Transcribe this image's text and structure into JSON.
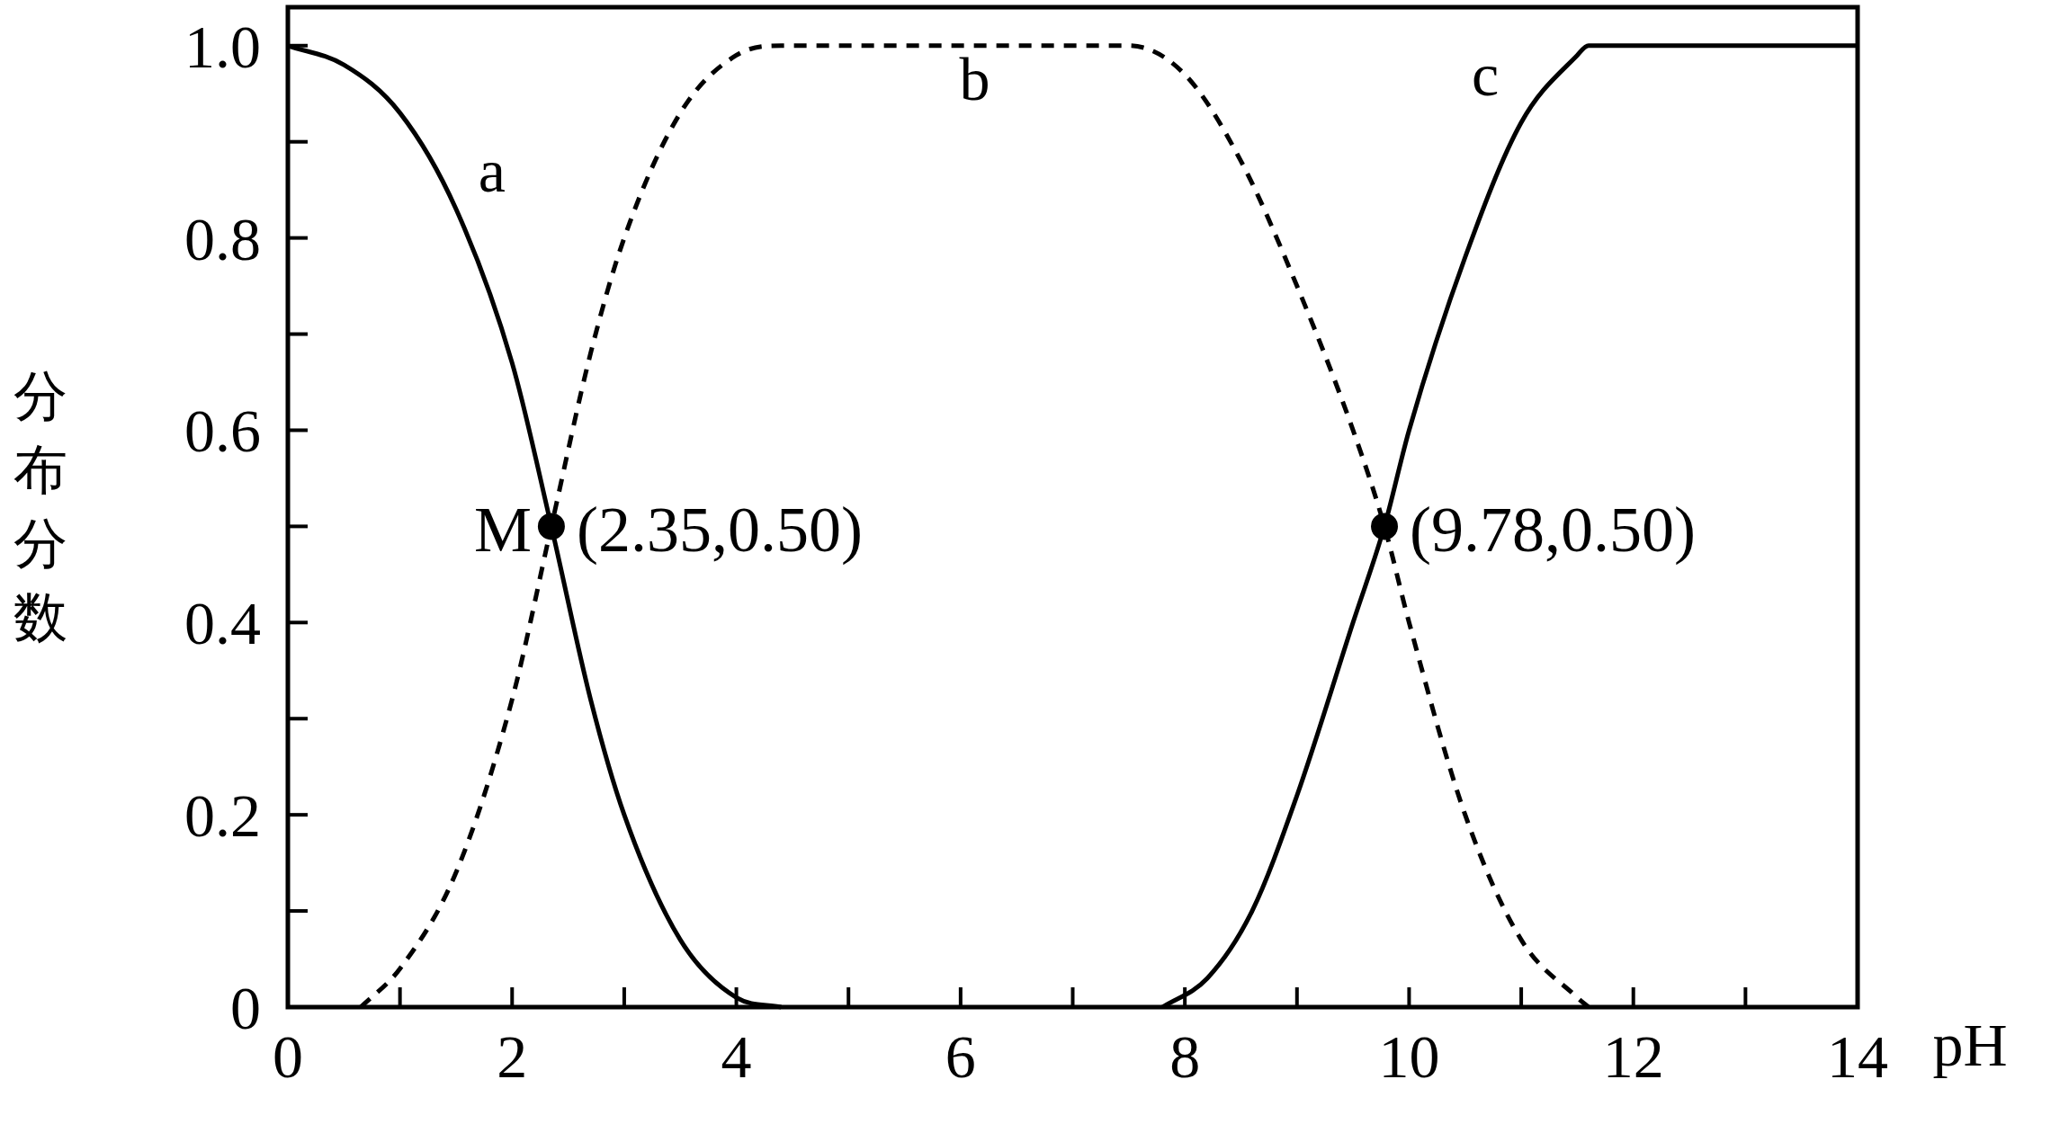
{
  "chart_data": {
    "type": "line",
    "ylabel": "分布分数",
    "xlabel": "pH",
    "xlim": [
      0,
      14
    ],
    "ylim": [
      0,
      1.04
    ],
    "xticks": [
      0,
      2,
      4,
      6,
      8,
      10,
      12,
      14
    ],
    "yticks": [
      {
        "value": 0,
        "label": "0"
      },
      {
        "value": 0.2,
        "label": "0.2"
      },
      {
        "value": 0.4,
        "label": "0.4"
      },
      {
        "value": 0.6,
        "label": "0.6"
      },
      {
        "value": 0.8,
        "label": "0.8"
      },
      {
        "value": 1.0,
        "label": "1.0"
      }
    ],
    "series": [
      {
        "name": "a",
        "color": "#000000",
        "line_style": "solid",
        "x": [
          0,
          0.5,
          1,
          1.5,
          2,
          2.35,
          2.7,
          3,
          3.5,
          4,
          4.4
        ],
        "values": [
          1.0,
          0.98,
          0.93,
          0.83,
          0.67,
          0.5,
          0.32,
          0.2,
          0.07,
          0.01,
          0
        ]
      },
      {
        "name": "b",
        "color": "#000000",
        "line_style": "dashed",
        "x": [
          0.65,
          1,
          1.5,
          2,
          2.35,
          2.7,
          3,
          3.5,
          4,
          4.4,
          7.5,
          8,
          8.5,
          9,
          9.5,
          9.78,
          10,
          10.5,
          11,
          11.5,
          11.6
        ],
        "values": [
          0,
          0.04,
          0.14,
          0.32,
          0.5,
          0.68,
          0.8,
          0.93,
          0.99,
          1,
          1,
          0.97,
          0.88,
          0.75,
          0.6,
          0.5,
          0.4,
          0.2,
          0.07,
          0.01,
          0
        ]
      },
      {
        "name": "c",
        "color": "#000000",
        "line_style": "solid",
        "x": [
          7.8,
          8.2,
          8.6,
          9,
          9.5,
          9.78,
          10,
          10.5,
          11,
          11.5,
          11.6,
          14
        ],
        "values": [
          0,
          0.03,
          0.1,
          0.22,
          0.4,
          0.5,
          0.6,
          0.78,
          0.92,
          0.99,
          1,
          1
        ]
      },
      {
        "type": "scatter",
        "color": "#000000",
        "marker": "circle",
        "x": [
          2.35,
          9.78
        ],
        "values": [
          0.5,
          0.5
        ]
      }
    ],
    "annotations": [
      "M",
      {
        "text": "(2.35,0.50)",
        "x": 2.35,
        "y": 0.5
      },
      {
        "text": "(9.78,0.50)",
        "x": 9.78,
        "y": 0.5
      }
    ]
  }
}
